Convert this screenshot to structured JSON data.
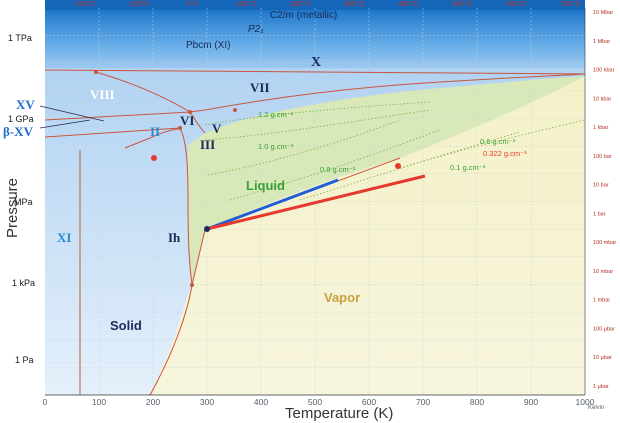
{
  "axes": {
    "xlabel": "Temperature (K)",
    "ylabel": "Pressure",
    "x_ticks": [
      "0",
      "100",
      "200",
      "300",
      "400",
      "500",
      "600",
      "700",
      "800",
      "900",
      "1000"
    ],
    "y_ticks": [
      "1 TPa",
      "1 GPa",
      "MPa",
      "1 kPa",
      "1 Pa"
    ],
    "top_ticks": [
      "-200°C",
      "-100°C",
      "0°C",
      "100°C",
      "200°C",
      "300°C",
      "400°C",
      "500°C",
      "600°C",
      "700°C"
    ],
    "right_ticks": [
      "10 Mbar",
      "1 Mbar",
      "100 kbar",
      "10 kbar",
      "1 kbar",
      "100 bar",
      "10 bar",
      "1 bar",
      "100 mbar",
      "10 mbar",
      "1 mbar",
      "100 μbar",
      "10 μbar",
      "1 μbar"
    ],
    "corner_label": "Kelvin"
  },
  "phases": {
    "c2m": "C2/m (metallic)",
    "p21": "P2₁",
    "pbcm": "Pbcm (XI)",
    "x": "X",
    "vii": "VII",
    "viii": "VIII",
    "xv": "XV",
    "bxv": "β-XV",
    "vi": "VI",
    "ii": "II",
    "v": "V",
    "iii": "III",
    "xi": "XI",
    "ih": "Ih",
    "solid": "Solid",
    "liquid": "Liquid",
    "vapor": "Vapor"
  },
  "densities": {
    "d12": "1.2 g.cm⁻³",
    "d10": "1.0 g.cm⁻³",
    "d08": "0.8 g.cm⁻³",
    "d06": "0.6 g.cm⁻³",
    "d0322": "0.322 g.cm⁻³",
    "d01": "0.1 g.cm⁻³"
  },
  "colors": {
    "phase_line": "#c9553c",
    "blue_line": "#1f5fd6",
    "red_line": "#e63a2e",
    "liquid_label": "#3aa13a",
    "vapor_label": "#c8a040",
    "roman_label": "#1a2a5a",
    "xv_label": "#1f6fcf",
    "ii_label": "#2a8ad0"
  }
}
